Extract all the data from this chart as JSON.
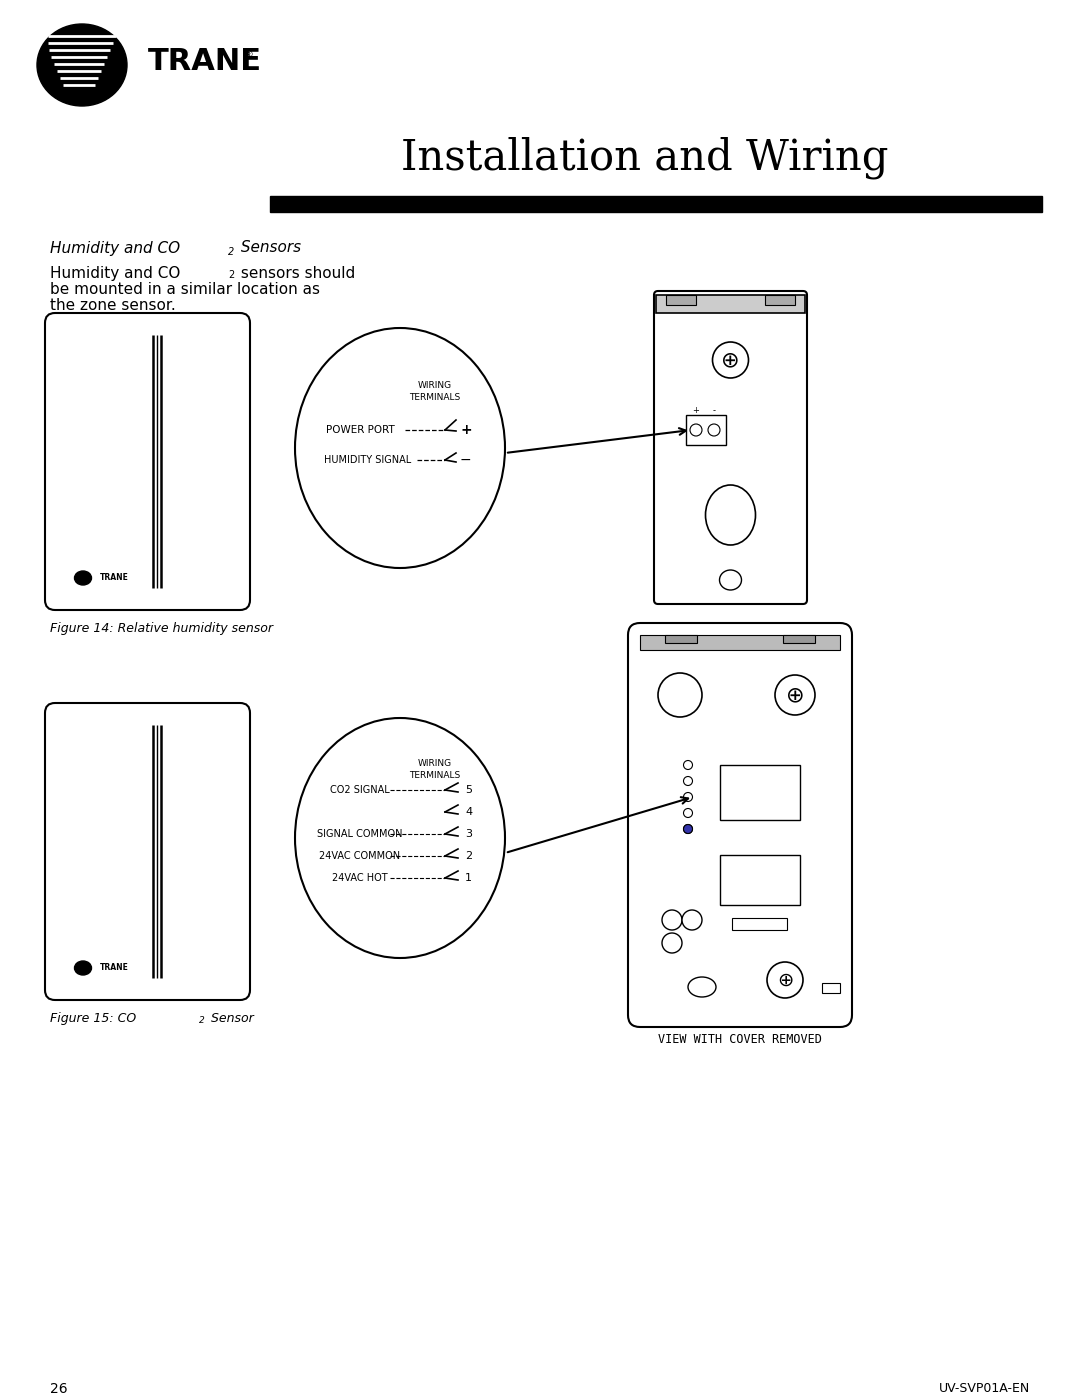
{
  "title": "Installation and Wiring",
  "fig14_caption": "Figure 14: Relative humidity sensor",
  "fig15_caption_pre": "Figure 15: CO",
  "fig15_sub": "2",
  "fig15_post": " Sensor",
  "section_heading_pre": "Humidity and CO",
  "section_heading_sub": "2",
  "section_heading_post": " Sensors",
  "body_line1_pre": "Humidity and CO",
  "body_line1_sub": "2",
  "body_line1_post": " sensors should",
  "body_line2": "be mounted in a similar location as",
  "body_line3": "the zone sensor.",
  "hum_wiring1": "WIRING",
  "hum_wiring2": "TERMINALS",
  "hum_label1": "POWER PORT",
  "hum_sym1": "+",
  "hum_label2": "HUMIDITY SIGNAL",
  "hum_sym2": "−",
  "co2_wiring1": "WIRING",
  "co2_wiring2": "TERMINALS",
  "co2_labels": [
    "CO2 SIGNAL",
    "SIGNAL COMMON",
    "24VAC COMMON",
    "24VAC HOT"
  ],
  "co2_nums": [
    "5",
    "4",
    "3",
    "2",
    "1"
  ],
  "view_label": "VIEW WITH COVER REMOVED",
  "page_number": "26",
  "doc_number": "UV-SVP01A-EN",
  "bg": "#ffffff"
}
